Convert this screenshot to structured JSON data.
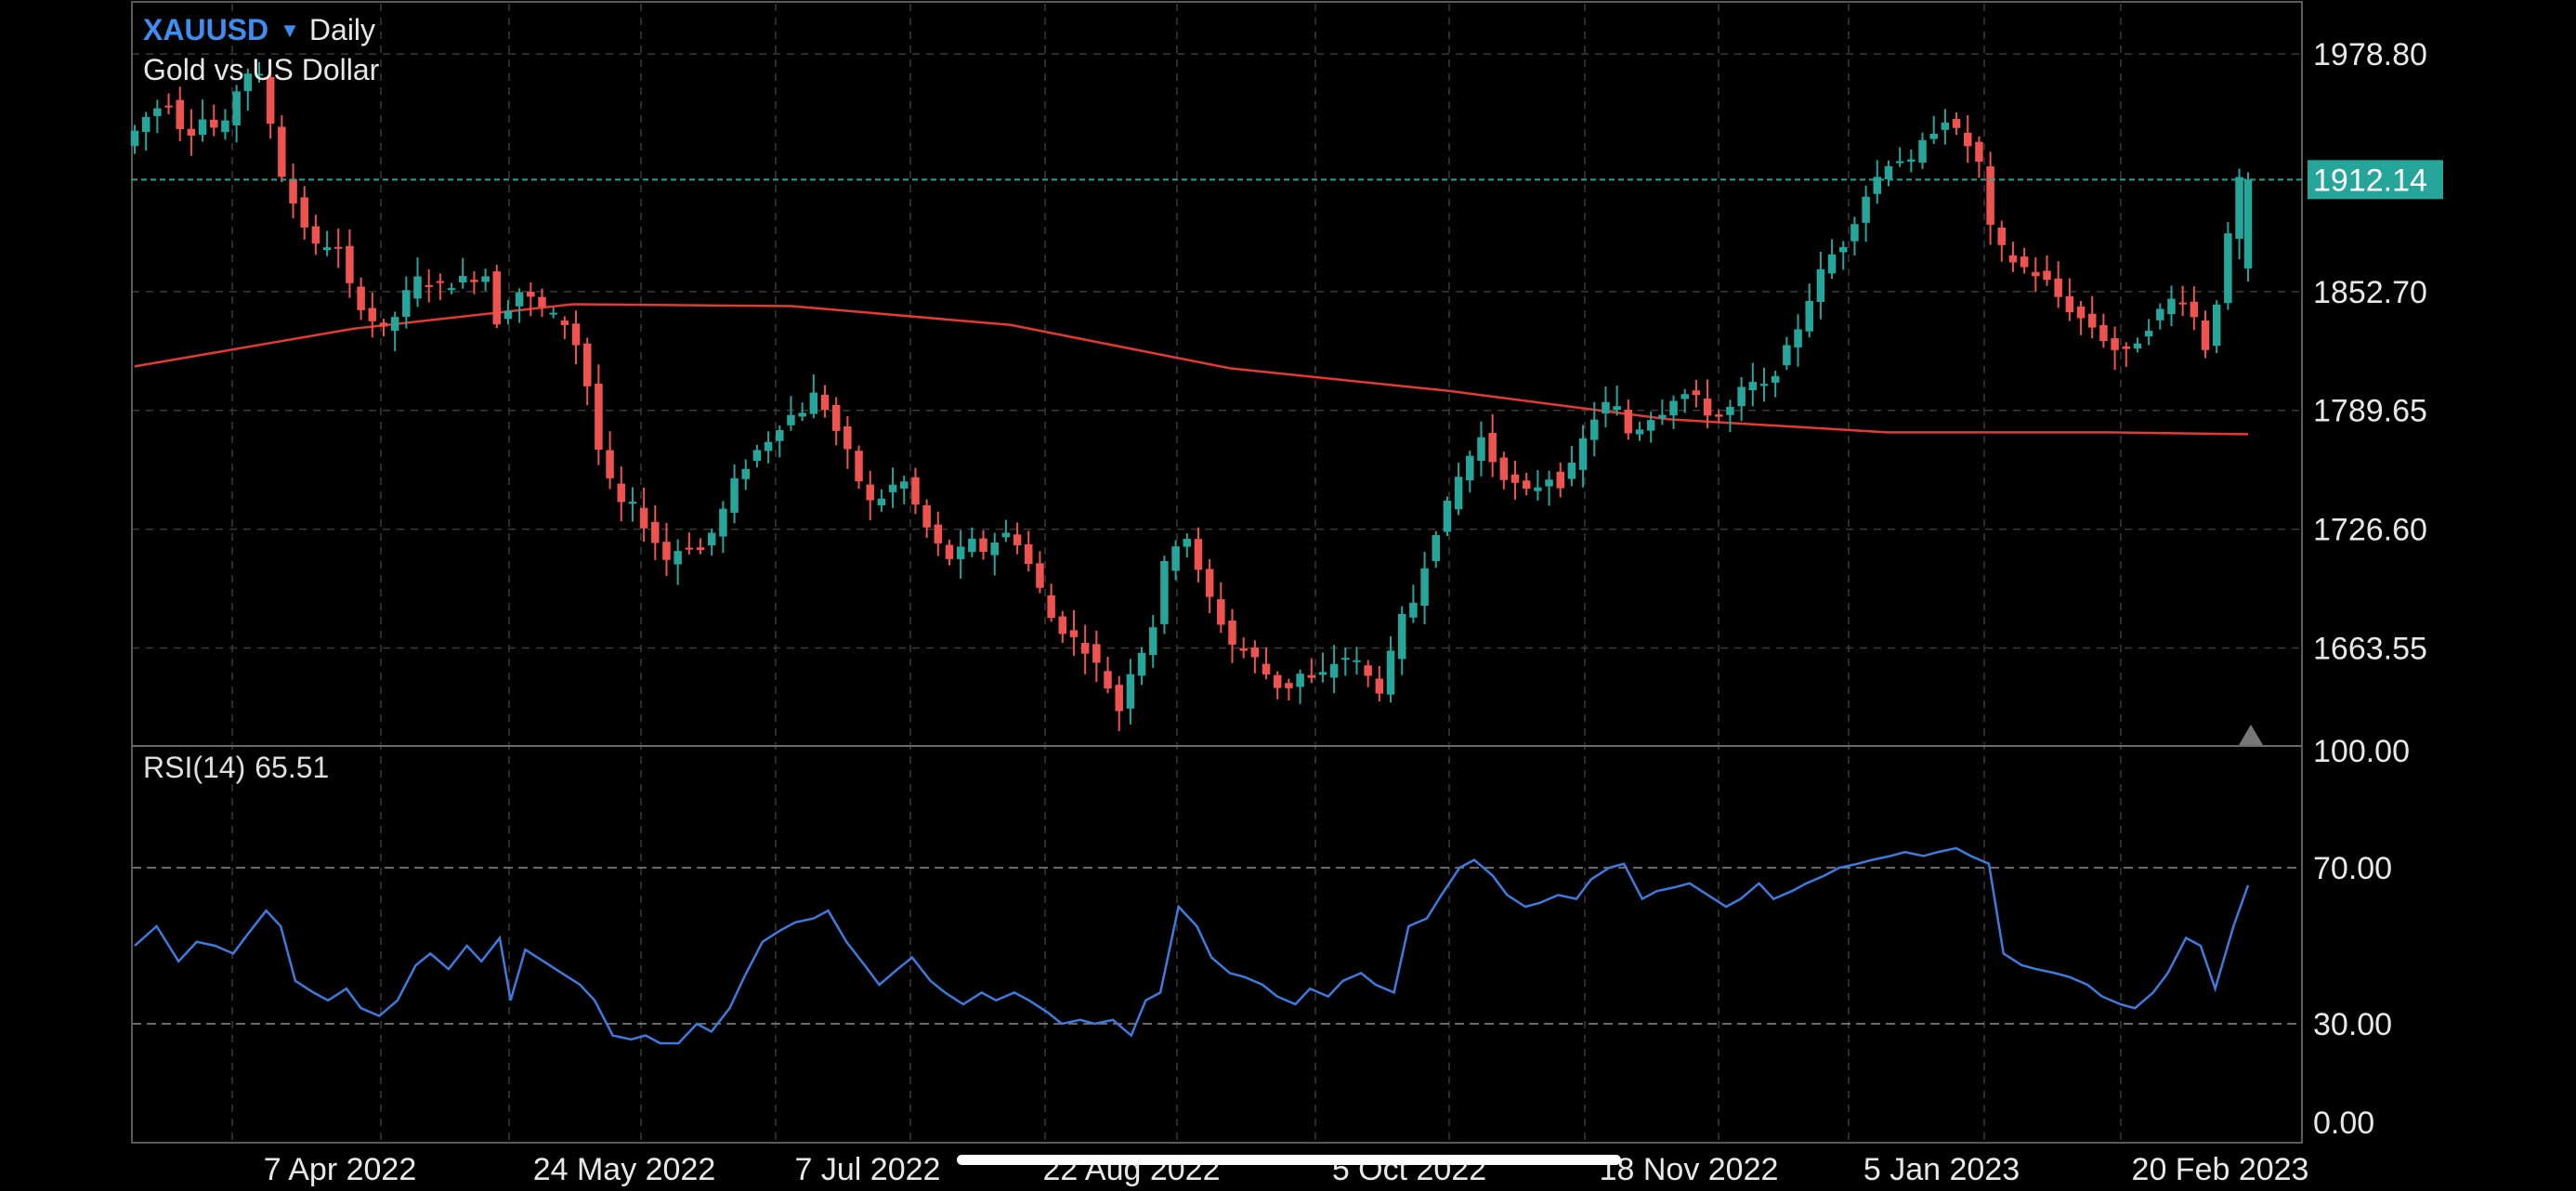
{
  "header": {
    "symbol": "XAUUSD",
    "timeframe": "Daily",
    "description": "Gold vs US Dollar"
  },
  "rsi": {
    "label": "RSI(14)",
    "value": "65.51"
  },
  "colors": {
    "background": "#000000",
    "up_candle": "#26a69a",
    "down_candle": "#ef5350",
    "moving_average": "#e53935",
    "rsi_line": "#3d7be0",
    "price_badge": "#26a69a",
    "grid": "#3a3a3a",
    "symbol_accent": "#3d8ef0"
  },
  "icons": {
    "symbol_dropdown": "caret-down-icon",
    "scroll_marker": "triangle-up-icon"
  },
  "chart_data": [
    {
      "type": "candlestick",
      "title": "XAUUSD Daily",
      "current_price": 1912.14,
      "price_tick_labels": [
        "1978.80",
        "1912.14",
        "1852.70",
        "1789.65",
        "1726.60",
        "1663.55"
      ],
      "ylim": [
        1613,
        2005
      ],
      "x_tick_labels": [
        "7 Apr 2022",
        "24 May 2022",
        "7 Jul 2022",
        "22 Aug 2022",
        "5 Oct 2022",
        "18 Nov 2022",
        "5 Jan 2023",
        "20 Feb 2023"
      ],
      "grid": true,
      "close_path": [
        [
          0,
          1930
        ],
        [
          6,
          1945
        ],
        [
          12,
          1955
        ],
        [
          17,
          1935
        ],
        [
          22,
          1945
        ],
        [
          27,
          1935
        ],
        [
          31,
          1960
        ],
        [
          36,
          1975
        ],
        [
          40,
          1945
        ],
        [
          44,
          1910
        ],
        [
          49,
          1890
        ],
        [
          53,
          1875
        ],
        [
          58,
          1880
        ],
        [
          62,
          1855
        ],
        [
          67,
          1840
        ],
        [
          72,
          1830
        ],
        [
          77,
          1850
        ],
        [
          81,
          1860
        ],
        [
          86,
          1855
        ],
        [
          91,
          1858
        ],
        [
          95,
          1860
        ],
        [
          100,
          1862
        ],
        [
          103,
          1830
        ],
        [
          107,
          1855
        ],
        [
          112,
          1848
        ],
        [
          117,
          1840
        ],
        [
          122,
          1835
        ],
        [
          126,
          1815
        ],
        [
          131,
          1760
        ],
        [
          136,
          1740
        ],
        [
          140,
          1738
        ],
        [
          144,
          1725
        ],
        [
          149,
          1710
        ],
        [
          154,
          1720
        ],
        [
          158,
          1715
        ],
        [
          163,
          1730
        ],
        [
          167,
          1750
        ],
        [
          172,
          1765
        ],
        [
          177,
          1775
        ],
        [
          181,
          1785
        ],
        [
          186,
          1790
        ],
        [
          190,
          1800
        ],
        [
          195,
          1780
        ],
        [
          200,
          1760
        ],
        [
          204,
          1740
        ],
        [
          209,
          1745
        ],
        [
          213,
          1755
        ],
        [
          218,
          1735
        ],
        [
          222,
          1720
        ],
        [
          227,
          1710
        ],
        [
          232,
          1720
        ],
        [
          236,
          1715
        ],
        [
          241,
          1725
        ],
        [
          245,
          1720
        ],
        [
          250,
          1700
        ],
        [
          254,
          1680
        ],
        [
          259,
          1670
        ],
        [
          263,
          1665
        ],
        [
          268,
          1650
        ],
        [
          273,
          1630
        ],
        [
          277,
          1660
        ],
        [
          281,
          1665
        ],
        [
          286,
          1715
        ],
        [
          291,
          1725
        ],
        [
          295,
          1700
        ],
        [
          300,
          1680
        ],
        [
          304,
          1665
        ],
        [
          309,
          1660
        ],
        [
          313,
          1650
        ],
        [
          318,
          1640
        ],
        [
          322,
          1650
        ],
        [
          327,
          1645
        ],
        [
          331,
          1655
        ],
        [
          336,
          1660
        ],
        [
          340,
          1650
        ],
        [
          345,
          1640
        ],
        [
          349,
          1675
        ],
        [
          354,
          1690
        ],
        [
          358,
          1720
        ],
        [
          363,
          1740
        ],
        [
          367,
          1760
        ],
        [
          372,
          1775
        ],
        [
          376,
          1760
        ],
        [
          381,
          1750
        ],
        [
          385,
          1745
        ],
        [
          390,
          1755
        ],
        [
          395,
          1750
        ],
        [
          399,
          1770
        ],
        [
          404,
          1790
        ],
        [
          408,
          1795
        ],
        [
          413,
          1775
        ],
        [
          417,
          1785
        ],
        [
          422,
          1790
        ],
        [
          426,
          1800
        ],
        [
          431,
          1795
        ],
        [
          436,
          1785
        ],
        [
          440,
          1790
        ],
        [
          445,
          1805
        ],
        [
          449,
          1800
        ],
        [
          454,
          1815
        ],
        [
          458,
          1830
        ],
        [
          463,
          1855
        ],
        [
          467,
          1870
        ],
        [
          472,
          1880
        ],
        [
          476,
          1900
        ],
        [
          481,
          1915
        ],
        [
          485,
          1925
        ],
        [
          490,
          1920
        ],
        [
          494,
          1935
        ],
        [
          499,
          1945
        ],
        [
          503,
          1935
        ],
        [
          508,
          1925
        ],
        [
          512,
          1880
        ],
        [
          517,
          1870
        ],
        [
          521,
          1865
        ],
        [
          526,
          1860
        ],
        [
          530,
          1850
        ],
        [
          535,
          1840
        ],
        [
          539,
          1835
        ],
        [
          544,
          1825
        ],
        [
          548,
          1818
        ],
        [
          553,
          1830
        ],
        [
          557,
          1840
        ],
        [
          562,
          1850
        ],
        [
          566,
          1848
        ],
        [
          570,
          1820
        ],
        [
          575,
          1860
        ],
        [
          579,
          1912.14
        ]
      ],
      "series": [
        {
          "name": "Moving Average",
          "values": [
            [
              0,
              1813
            ],
            [
              60,
              1833
            ],
            [
              120,
              1846
            ],
            [
              180,
              1845
            ],
            [
              240,
              1835
            ],
            [
              300,
              1812
            ],
            [
              360,
              1800
            ],
            [
              420,
              1785
            ],
            [
              480,
              1778
            ],
            [
              540,
              1778
            ],
            [
              579,
              1777
            ]
          ]
        }
      ]
    },
    {
      "type": "line",
      "title": "RSI(14) 65.51",
      "ylim": [
        0,
        100
      ],
      "y_tick_labels": [
        "100.00",
        "70.00",
        "30.00",
        "0.00"
      ],
      "reference_lines": [
        70,
        30
      ],
      "series": [
        {
          "name": "RSI(14)",
          "values": [
            [
              0,
              50
            ],
            [
              6,
              55
            ],
            [
              12,
              46
            ],
            [
              17,
              51
            ],
            [
              22,
              50
            ],
            [
              27,
              48
            ],
            [
              31,
              53
            ],
            [
              36,
              59
            ],
            [
              40,
              55
            ],
            [
              44,
              41
            ],
            [
              49,
              38
            ],
            [
              53,
              36
            ],
            [
              58,
              39
            ],
            [
              62,
              34
            ],
            [
              67,
              32
            ],
            [
              72,
              36
            ],
            [
              77,
              45
            ],
            [
              81,
              48
            ],
            [
              86,
              44
            ],
            [
              91,
              50
            ],
            [
              95,
              46
            ],
            [
              100,
              52
            ],
            [
              103,
              36
            ],
            [
              107,
              49
            ],
            [
              112,
              46
            ],
            [
              117,
              43
            ],
            [
              122,
              40
            ],
            [
              126,
              36
            ],
            [
              131,
              27
            ],
            [
              136,
              26
            ],
            [
              140,
              27
            ],
            [
              144,
              25
            ],
            [
              149,
              25
            ],
            [
              154,
              30
            ],
            [
              158,
              28
            ],
            [
              163,
              34
            ],
            [
              167,
              42
            ],
            [
              172,
              51
            ],
            [
              177,
              54
            ],
            [
              181,
              56
            ],
            [
              186,
              57
            ],
            [
              190,
              59
            ],
            [
              195,
              51
            ],
            [
              200,
              45
            ],
            [
              204,
              40
            ],
            [
              209,
              44
            ],
            [
              213,
              47
            ],
            [
              218,
              41
            ],
            [
              222,
              38
            ],
            [
              227,
              35
            ],
            [
              232,
              38
            ],
            [
              236,
              36
            ],
            [
              241,
              38
            ],
            [
              245,
              36
            ],
            [
              250,
              33
            ],
            [
              254,
              30
            ],
            [
              259,
              31
            ],
            [
              263,
              30
            ],
            [
              268,
              31
            ],
            [
              273,
              27
            ],
            [
              277,
              36
            ],
            [
              281,
              38
            ],
            [
              286,
              60
            ],
            [
              291,
              55
            ],
            [
              295,
              47
            ],
            [
              300,
              43
            ],
            [
              304,
              42
            ],
            [
              309,
              40
            ],
            [
              313,
              37
            ],
            [
              318,
              35
            ],
            [
              322,
              39
            ],
            [
              327,
              37
            ],
            [
              331,
              41
            ],
            [
              336,
              43
            ],
            [
              340,
              40
            ],
            [
              345,
              38
            ],
            [
              349,
              55
            ],
            [
              354,
              57
            ],
            [
              358,
              63
            ],
            [
              363,
              70
            ],
            [
              367,
              72
            ],
            [
              372,
              68
            ],
            [
              376,
              63
            ],
            [
              381,
              60
            ],
            [
              385,
              61
            ],
            [
              390,
              63
            ],
            [
              395,
              62
            ],
            [
              399,
              67
            ],
            [
              404,
              70
            ],
            [
              408,
              71
            ],
            [
              413,
              62
            ],
            [
              417,
              64
            ],
            [
              422,
              65
            ],
            [
              426,
              66
            ],
            [
              431,
              63
            ],
            [
              436,
              60
            ],
            [
              440,
              62
            ],
            [
              445,
              66
            ],
            [
              449,
              62
            ],
            [
              454,
              64
            ],
            [
              458,
              66
            ],
            [
              463,
              68
            ],
            [
              467,
              70
            ],
            [
              472,
              71
            ],
            [
              476,
              72
            ],
            [
              481,
              73
            ],
            [
              485,
              74
            ],
            [
              490,
              73
            ],
            [
              494,
              74
            ],
            [
              499,
              75
            ],
            [
              503,
              73
            ],
            [
              508,
              71
            ],
            [
              512,
              48
            ],
            [
              517,
              45
            ],
            [
              521,
              44
            ],
            [
              526,
              43
            ],
            [
              530,
              42
            ],
            [
              535,
              40
            ],
            [
              539,
              37
            ],
            [
              544,
              35
            ],
            [
              548,
              34
            ],
            [
              553,
              38
            ],
            [
              557,
              43
            ],
            [
              562,
              52
            ],
            [
              566,
              50
            ],
            [
              570,
              39
            ],
            [
              575,
              55
            ],
            [
              579,
              65.51
            ]
          ]
        }
      ]
    }
  ]
}
